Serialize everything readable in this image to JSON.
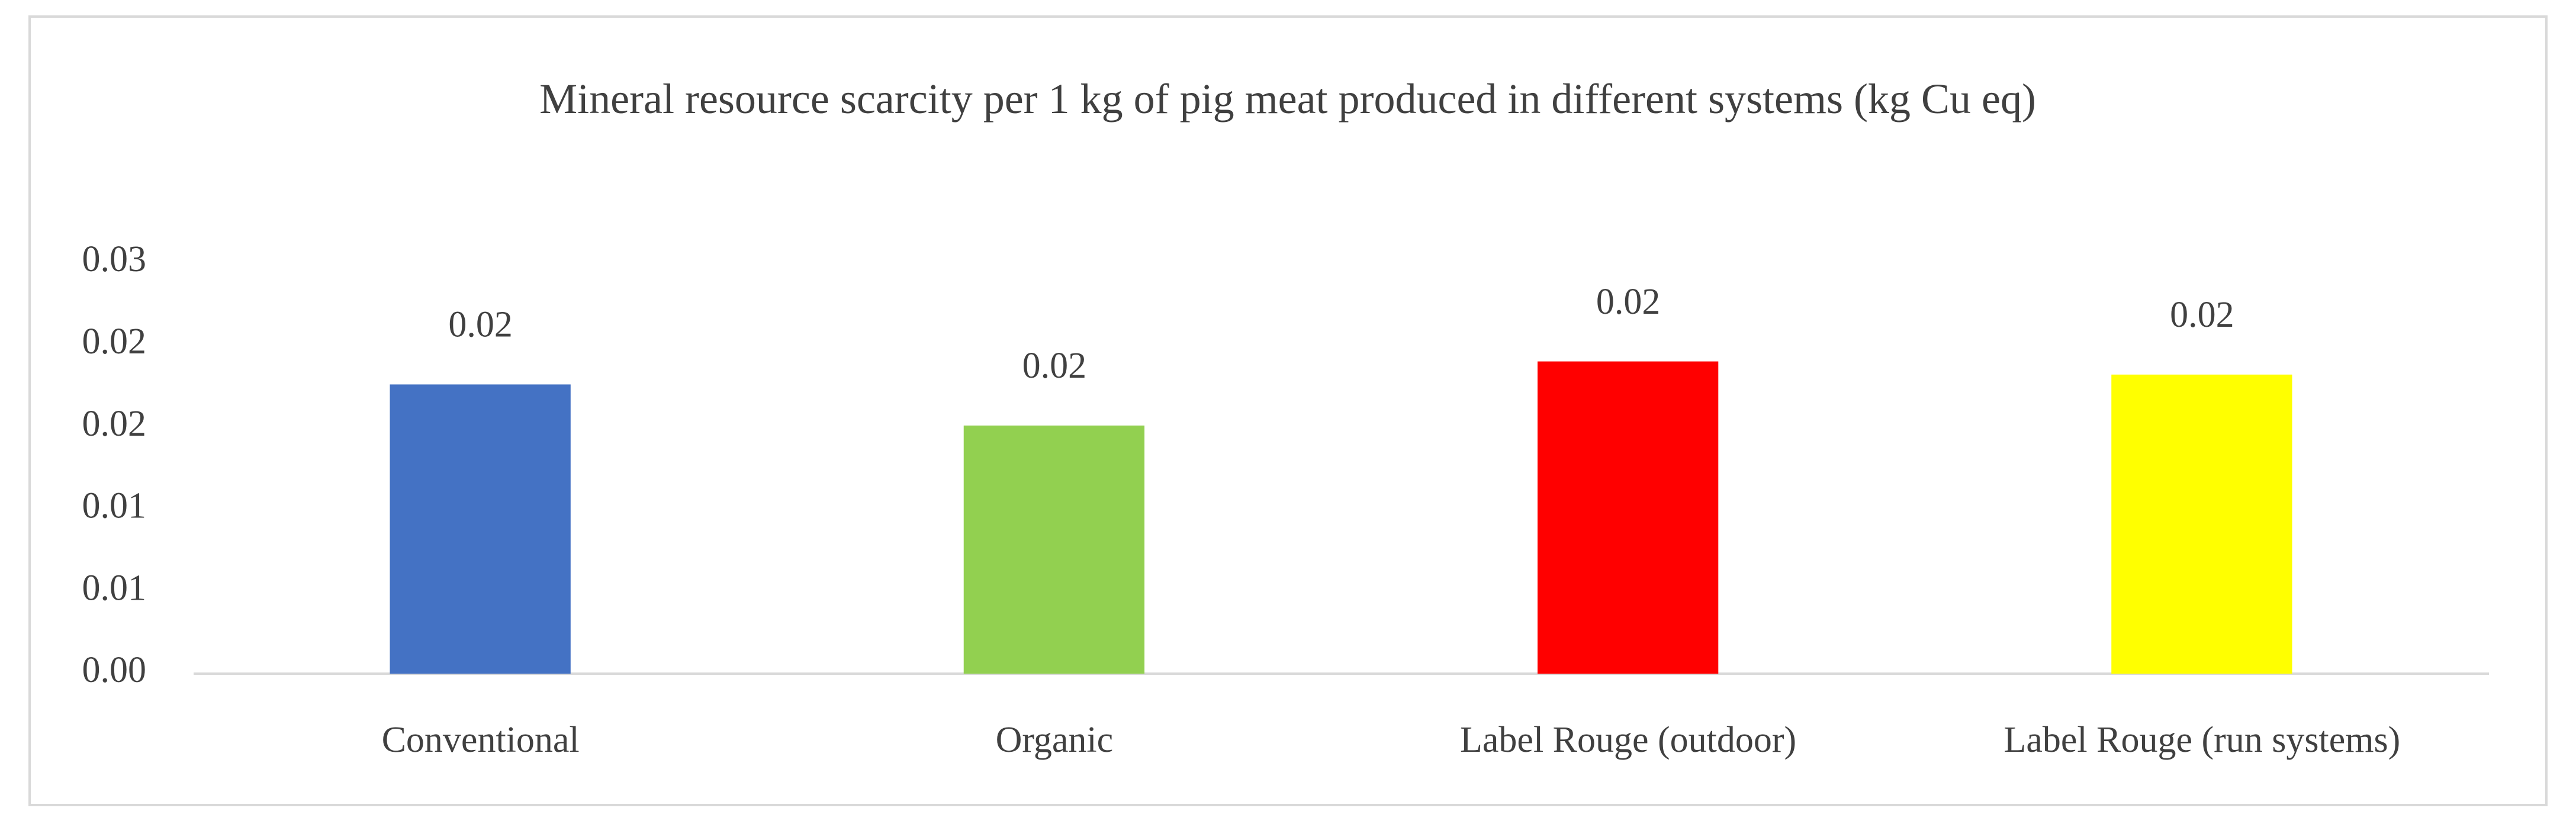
{
  "chart_data": {
    "type": "bar",
    "title": "Mineral resource scarcity per 1 kg of pig meat produced in different systems (kg Cu eq)",
    "categories": [
      "Conventional",
      "Organic",
      "Label Rouge (outdoor)",
      "Label Rouge (run systems)"
    ],
    "values": [
      0.0176,
      0.0151,
      0.019,
      0.0182
    ],
    "value_labels": [
      "0.02",
      "0.02",
      "0.02",
      "0.02"
    ],
    "colors": [
      "#4472c4",
      "#92d050",
      "#ff0000",
      "#ffff00"
    ],
    "ylim": [
      0,
      0.025
    ],
    "yticks": [
      {
        "value": 0,
        "label": "0.00"
      },
      {
        "value": 0.005,
        "label": "0.01"
      },
      {
        "value": 0.01,
        "label": "0.01"
      },
      {
        "value": 0.015,
        "label": "0.02"
      },
      {
        "value": 0.02,
        "label": "0.02"
      },
      {
        "value": 0.025,
        "label": "0.03"
      }
    ],
    "grid": false
  }
}
